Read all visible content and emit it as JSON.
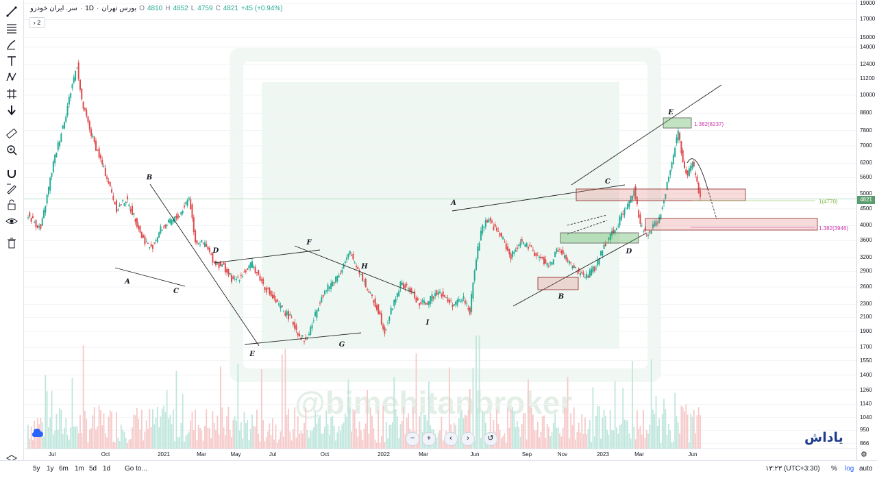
{
  "legend": {
    "symbol": "سر. ایران خودرو",
    "interval": "1D",
    "exchange": "بورس تهران",
    "open_label": "O",
    "open": "4810",
    "high_label": "H",
    "high": "4852",
    "low_label": "L",
    "low": "4759",
    "close_label": "C",
    "close": "4821",
    "change": "+45 (+0.94%)"
  },
  "indicator_count": "2",
  "last_price": "4821",
  "watermark_text": "@bimehitanbroker",
  "brand_logo": "یاداش",
  "range_buttons": [
    "5y",
    "1y",
    "6m",
    "1m",
    "5d",
    "1d"
  ],
  "goto_label": "Go to...",
  "timezone": "۱۳:۲۳ (UTC+3:30)",
  "percent_label": "%",
  "log_label": "log",
  "auto_label": "auto",
  "colors": {
    "up": "#22ab94",
    "down": "#e0494b",
    "accent": "#2962ff",
    "annotation": "#cc33aa",
    "fib_green": "#7cb342"
  },
  "chart_data": {
    "type": "candlestick",
    "scale": "log",
    "x_ticks": [
      "Jul",
      "Oct",
      "2021",
      "Mar",
      "May",
      "Jul",
      "Oct",
      "2022",
      "Mar",
      "Jun",
      "Sep",
      "Nov",
      "2023",
      "Mar",
      "Jun"
    ],
    "y_ticks": [
      19000,
      17000,
      15000,
      14000,
      12400,
      11200,
      10000,
      8800,
      7800,
      7000,
      6200,
      5600,
      5000,
      4500,
      4000,
      3600,
      3200,
      2900,
      2600,
      2300,
      2100,
      1900,
      1700,
      1550,
      1400,
      1260,
      1140,
      1040,
      950,
      866
    ],
    "close_path": [
      [
        0,
        4300
      ],
      [
        8,
        3900
      ],
      [
        16,
        6200
      ],
      [
        24,
        8800
      ],
      [
        28,
        10800
      ],
      [
        31,
        12400
      ],
      [
        34,
        9500
      ],
      [
        40,
        7600
      ],
      [
        50,
        5600
      ],
      [
        56,
        4500
      ],
      [
        62,
        4800
      ],
      [
        68,
        4200
      ],
      [
        72,
        3700
      ],
      [
        78,
        3400
      ],
      [
        84,
        3900
      ],
      [
        90,
        4100
      ],
      [
        96,
        4300
      ],
      [
        102,
        4900
      ],
      [
        106,
        3600
      ],
      [
        112,
        3500
      ],
      [
        118,
        3100
      ],
      [
        124,
        3000
      ],
      [
        130,
        2700
      ],
      [
        136,
        2850
      ],
      [
        142,
        3050
      ],
      [
        150,
        2600
      ],
      [
        158,
        2300
      ],
      [
        166,
        2100
      ],
      [
        172,
        1850
      ],
      [
        176,
        1780
      ],
      [
        180,
        2000
      ],
      [
        186,
        2450
      ],
      [
        192,
        2650
      ],
      [
        198,
        2900
      ],
      [
        204,
        3300
      ],
      [
        210,
        2900
      ],
      [
        216,
        2500
      ],
      [
        222,
        2200
      ],
      [
        226,
        1900
      ],
      [
        230,
        2200
      ],
      [
        236,
        2650
      ],
      [
        242,
        2550
      ],
      [
        248,
        2300
      ],
      [
        254,
        2350
      ],
      [
        260,
        2550
      ],
      [
        266,
        2350
      ],
      [
        270,
        2300
      ],
      [
        276,
        2400
      ],
      [
        280,
        2200
      ],
      [
        284,
        3200
      ],
      [
        288,
        4000
      ],
      [
        292,
        4200
      ],
      [
        296,
        3900
      ],
      [
        300,
        3700
      ],
      [
        306,
        3200
      ],
      [
        312,
        3600
      ],
      [
        318,
        3400
      ],
      [
        324,
        3200
      ],
      [
        330,
        3000
      ],
      [
        336,
        3400
      ],
      [
        342,
        3100
      ],
      [
        348,
        2900
      ],
      [
        354,
        2800
      ],
      [
        360,
        3000
      ],
      [
        364,
        3400
      ],
      [
        368,
        3700
      ],
      [
        372,
        3900
      ],
      [
        376,
        4300
      ],
      [
        380,
        4600
      ],
      [
        384,
        5200
      ],
      [
        388,
        4000
      ],
      [
        392,
        3700
      ],
      [
        396,
        4000
      ],
      [
        400,
        4200
      ],
      [
        404,
        5100
      ],
      [
        408,
        6300
      ],
      [
        412,
        7800
      ],
      [
        415,
        6200
      ],
      [
        418,
        5700
      ],
      [
        421,
        6200
      ],
      [
        424,
        5400
      ],
      [
        426,
        4821
      ]
    ],
    "wave_labels": [
      "A",
      "B",
      "C",
      "D",
      "E",
      "F",
      "G",
      "H",
      "I",
      "A",
      "B",
      "C",
      "D",
      "E"
    ],
    "annotations": [
      "1.382(8237)",
      "1(4770)",
      "1.382(3946)"
    ]
  }
}
